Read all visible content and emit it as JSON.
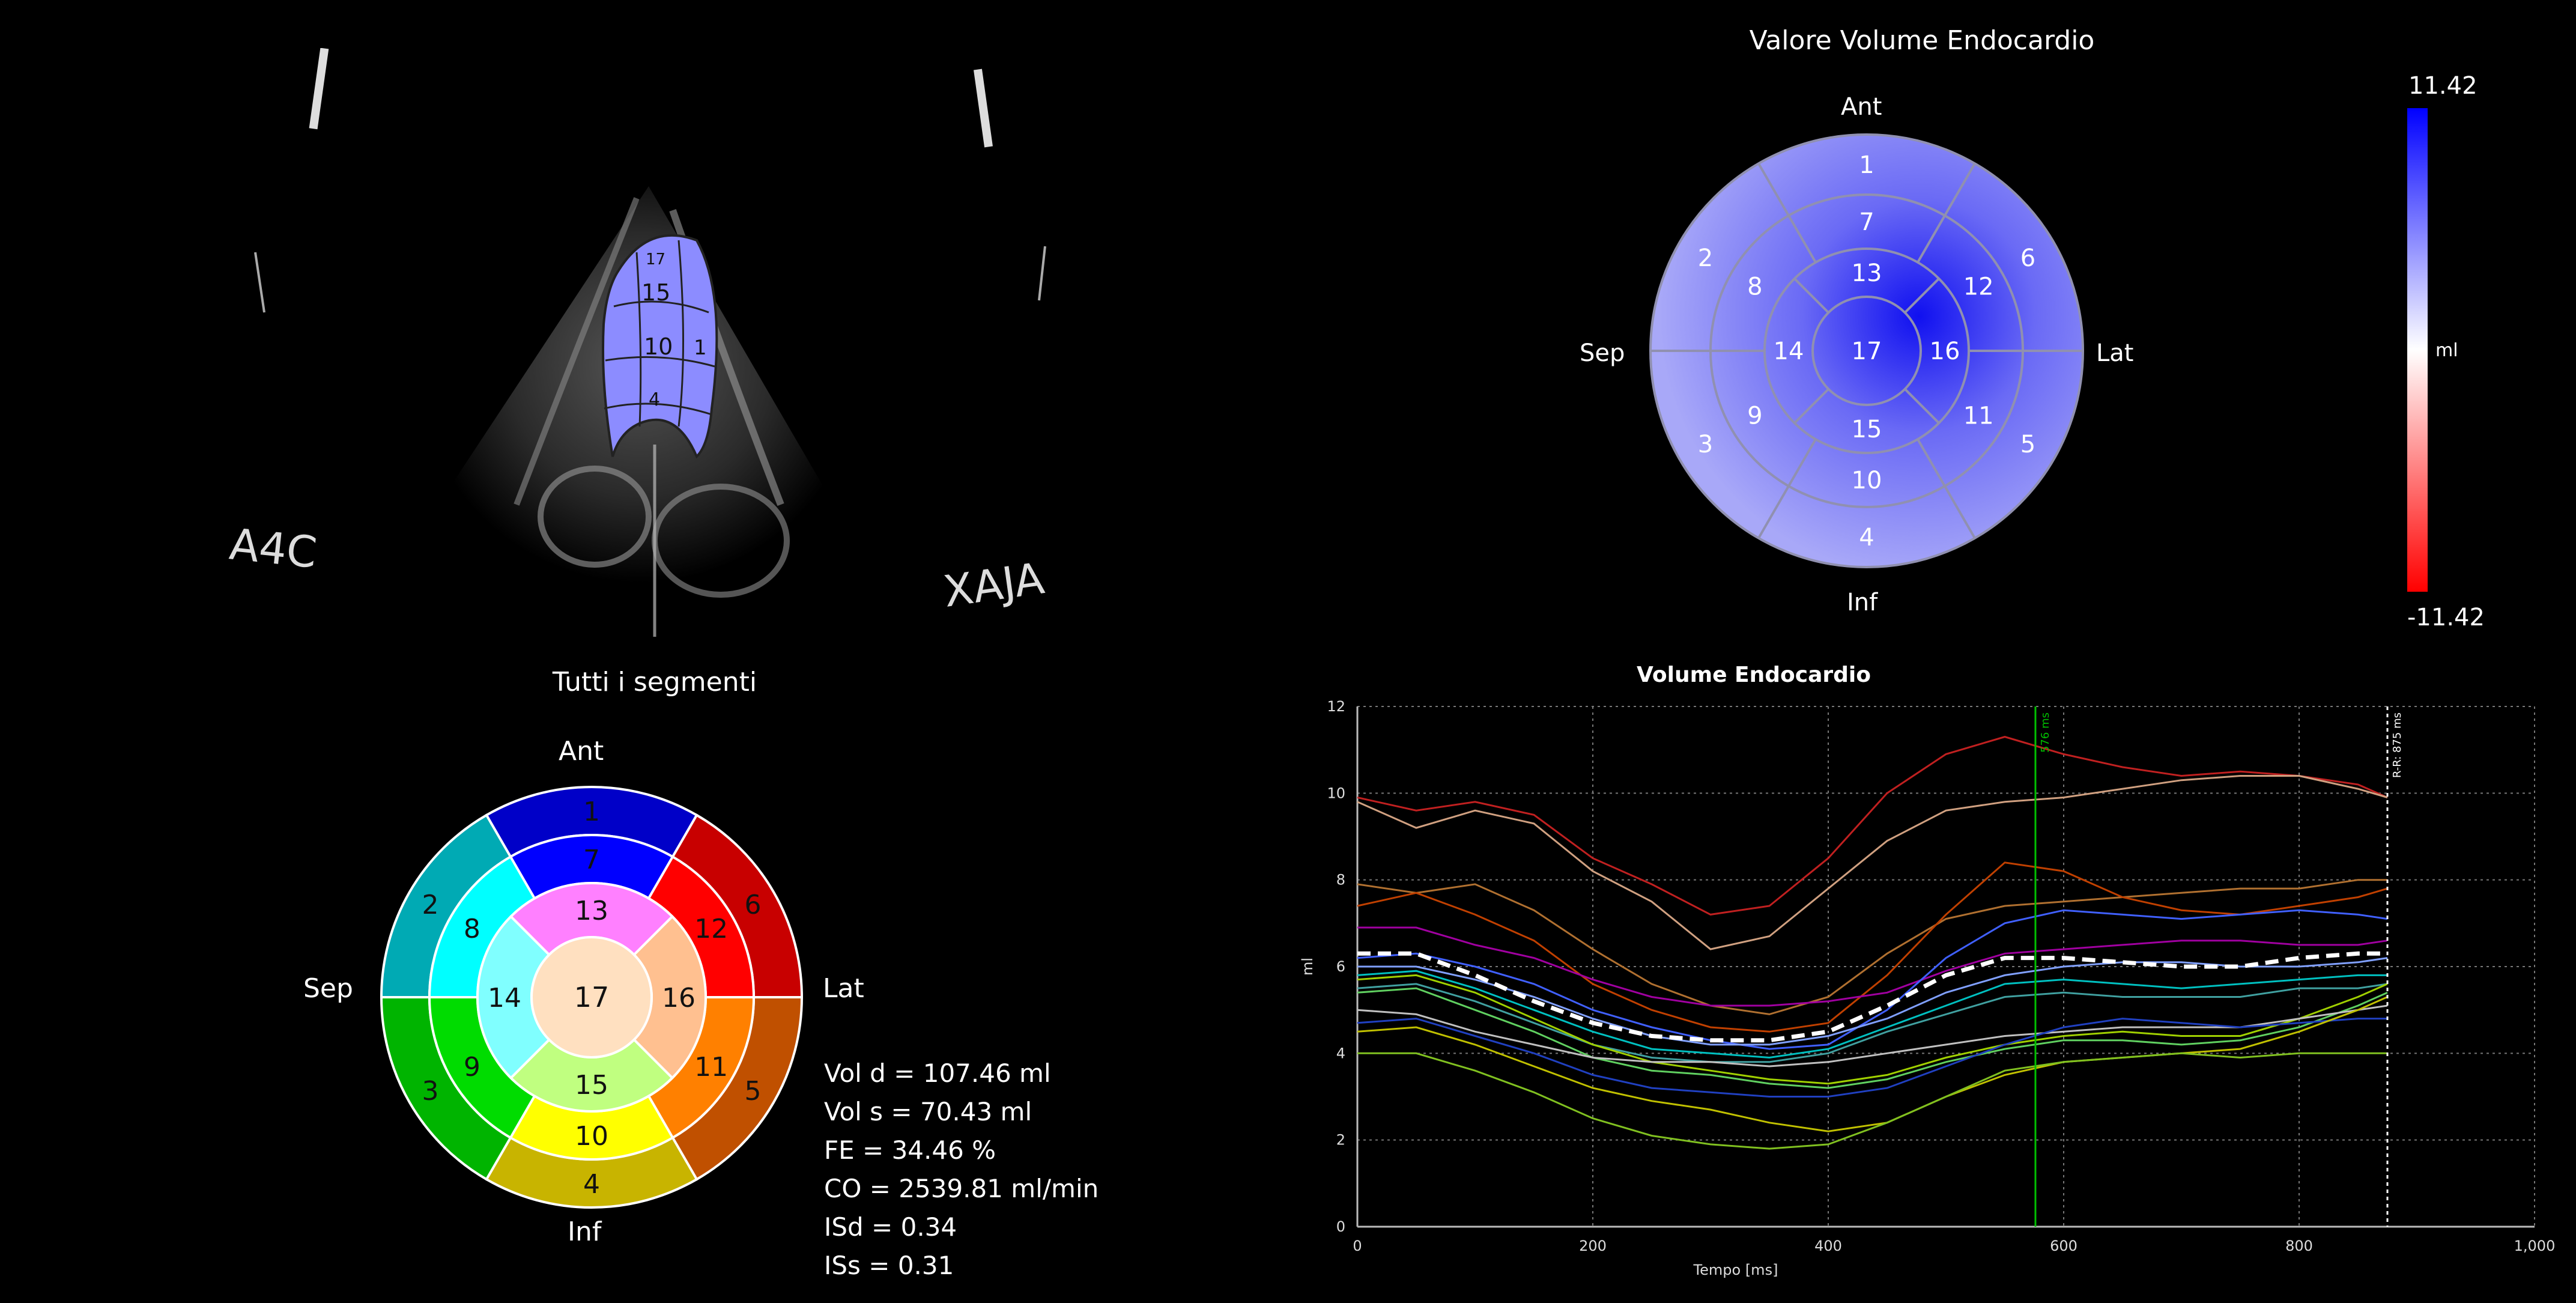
{
  "echo": {
    "view_label": "A4C",
    "logo_text": "XAJA",
    "overlay_segments": [
      "17",
      "15",
      "10",
      "1",
      "4"
    ]
  },
  "bullseye_all": {
    "title": "Tutti i segmenti",
    "orient": {
      "top": "Ant",
      "bottom": "Inf",
      "left": "Sep",
      "right": "Lat"
    },
    "outer": [
      {
        "n": "1",
        "color": "#0000c8"
      },
      {
        "n": "6",
        "color": "#c80000"
      },
      {
        "n": "5",
        "color": "#c05000"
      },
      {
        "n": "4",
        "color": "#c8b400"
      },
      {
        "n": "3",
        "color": "#00b400"
      },
      {
        "n": "2",
        "color": "#00aab4"
      }
    ],
    "middle": [
      {
        "n": "7",
        "color": "#0000ff"
      },
      {
        "n": "12",
        "color": "#ff0000"
      },
      {
        "n": "11",
        "color": "#ff8000"
      },
      {
        "n": "10",
        "color": "#ffff00"
      },
      {
        "n": "9",
        "color": "#00dc00"
      },
      {
        "n": "8",
        "color": "#00ffff"
      }
    ],
    "inner": [
      {
        "n": "13",
        "color": "#ff80ff"
      },
      {
        "n": "16",
        "color": "#ffc090"
      },
      {
        "n": "15",
        "color": "#c0ff80"
      },
      {
        "n": "14",
        "color": "#80ffff"
      }
    ],
    "apex": {
      "n": "17",
      "color": "#ffe0c0"
    }
  },
  "stats": [
    "Vol d = 107.46 ml",
    "Vol s = 70.43 ml",
    "FE = 34.46 %",
    "CO = 2539.81 ml/min",
    "ISd = 0.34",
    "ISs = 0.31"
  ],
  "bullseye_vol": {
    "title": "Valore Volume Endocardio",
    "orient": {
      "top": "Ant",
      "bottom": "Inf",
      "left": "Sep",
      "right": "Lat"
    },
    "outer": [
      "1",
      "6",
      "5",
      "4",
      "3",
      "2"
    ],
    "middle": [
      "7",
      "12",
      "11",
      "10",
      "9",
      "8"
    ],
    "inner": [
      "13",
      "16",
      "15",
      "14"
    ],
    "apex": "17",
    "colorbar": {
      "max": "11.42",
      "min": "-11.42",
      "unit": "ml",
      "color_max": "#0000ff",
      "color_mid": "#ffffff",
      "color_min": "#ff0000"
    }
  },
  "chart_data": {
    "type": "line",
    "title": "Volume Endocardio",
    "xlabel": "Tempo [ms]",
    "ylabel": "ml",
    "xlim": [
      0,
      1000
    ],
    "ylim": [
      0,
      12
    ],
    "xticks": [
      "0",
      "200",
      "400",
      "600",
      "800",
      "1,000"
    ],
    "yticks": [
      "0",
      "2",
      "4",
      "6",
      "8",
      "10",
      "12"
    ],
    "markers": [
      {
        "label": "576 ms",
        "x": 576,
        "color": "#00c000"
      },
      {
        "label": "R-R: 875 ms",
        "x": 875,
        "color": "#ffffff"
      }
    ],
    "x": [
      0,
      50,
      100,
      150,
      200,
      250,
      300,
      350,
      400,
      450,
      500,
      550,
      600,
      650,
      700,
      750,
      800,
      850,
      875
    ],
    "series": [
      {
        "color": "#c02020",
        "values": [
          9.9,
          9.6,
          9.8,
          9.5,
          8.5,
          7.9,
          7.2,
          7.4,
          8.5,
          10.0,
          10.9,
          11.3,
          10.9,
          10.6,
          10.4,
          10.5,
          10.4,
          10.2,
          9.9
        ]
      },
      {
        "color": "#d0a080",
        "values": [
          9.8,
          9.2,
          9.6,
          9.3,
          8.2,
          7.5,
          6.4,
          6.7,
          7.8,
          8.9,
          9.6,
          9.8,
          9.9,
          10.1,
          10.3,
          10.4,
          10.4,
          10.1,
          9.9
        ]
      },
      {
        "color": "#b07030",
        "values": [
          7.9,
          7.7,
          7.9,
          7.3,
          6.4,
          5.6,
          5.1,
          4.9,
          5.3,
          6.3,
          7.1,
          7.4,
          7.5,
          7.6,
          7.7,
          7.8,
          7.8,
          8.0,
          8.0
        ]
      },
      {
        "color": "#c04000",
        "values": [
          7.4,
          7.7,
          7.2,
          6.6,
          5.6,
          5.0,
          4.6,
          4.5,
          4.7,
          5.8,
          7.2,
          8.4,
          8.2,
          7.6,
          7.3,
          7.2,
          7.4,
          7.6,
          7.8
        ]
      },
      {
        "color": "#a000a0",
        "values": [
          6.9,
          6.9,
          6.5,
          6.2,
          5.7,
          5.3,
          5.1,
          5.1,
          5.2,
          5.4,
          5.9,
          6.3,
          6.4,
          6.5,
          6.6,
          6.6,
          6.5,
          6.5,
          6.6
        ]
      },
      {
        "color": "#4060ff",
        "values": [
          6.2,
          6.3,
          6.0,
          5.6,
          5.0,
          4.6,
          4.3,
          4.1,
          4.2,
          5.0,
          6.2,
          7.0,
          7.3,
          7.2,
          7.1,
          7.2,
          7.3,
          7.2,
          7.1
        ]
      },
      {
        "color": "#80a0ff",
        "values": [
          6.0,
          6.0,
          5.7,
          5.3,
          4.8,
          4.4,
          4.2,
          4.2,
          4.4,
          4.8,
          5.4,
          5.8,
          6.0,
          6.1,
          6.1,
          6.0,
          6.0,
          6.1,
          6.2
        ]
      },
      {
        "color": "#ffffff",
        "dashed": true,
        "values": [
          6.3,
          6.3,
          5.8,
          5.2,
          4.7,
          4.4,
          4.3,
          4.3,
          4.5,
          5.1,
          5.8,
          6.2,
          6.2,
          6.1,
          6.0,
          6.0,
          6.2,
          6.3,
          6.3
        ]
      },
      {
        "color": "#00c0c0",
        "values": [
          5.8,
          5.9,
          5.5,
          5.0,
          4.5,
          4.1,
          4.0,
          3.9,
          4.1,
          4.6,
          5.1,
          5.6,
          5.7,
          5.6,
          5.5,
          5.6,
          5.7,
          5.8,
          5.8
        ]
      },
      {
        "color": "#40a0a0",
        "values": [
          5.5,
          5.6,
          5.2,
          4.7,
          4.2,
          3.9,
          3.8,
          3.8,
          4.0,
          4.5,
          4.9,
          5.3,
          5.4,
          5.3,
          5.3,
          5.3,
          5.5,
          5.5,
          5.6
        ]
      },
      {
        "color": "#a0d000",
        "values": [
          5.7,
          5.8,
          5.4,
          4.8,
          4.2,
          3.8,
          3.6,
          3.4,
          3.3,
          3.5,
          3.9,
          4.2,
          4.4,
          4.5,
          4.4,
          4.4,
          4.8,
          5.3,
          5.6
        ]
      },
      {
        "color": "#60d060",
        "values": [
          5.4,
          5.5,
          5.0,
          4.5,
          3.9,
          3.6,
          3.5,
          3.3,
          3.2,
          3.4,
          3.8,
          4.1,
          4.3,
          4.3,
          4.2,
          4.3,
          4.6,
          5.1,
          5.4
        ]
      },
      {
        "color": "#c0c0c0",
        "values": [
          5.0,
          4.9,
          4.5,
          4.2,
          3.9,
          3.8,
          3.8,
          3.7,
          3.8,
          4.0,
          4.2,
          4.4,
          4.5,
          4.6,
          4.6,
          4.6,
          4.8,
          5.0,
          5.1
        ]
      },
      {
        "color": "#2040c0",
        "values": [
          4.7,
          4.8,
          4.4,
          4.0,
          3.5,
          3.2,
          3.1,
          3.0,
          3.0,
          3.2,
          3.7,
          4.2,
          4.6,
          4.8,
          4.7,
          4.6,
          4.7,
          4.8,
          4.8
        ]
      },
      {
        "color": "#c0c000",
        "values": [
          4.5,
          4.6,
          4.2,
          3.7,
          3.2,
          2.9,
          2.7,
          2.4,
          2.2,
          2.4,
          3.0,
          3.5,
          3.8,
          3.9,
          4.0,
          4.1,
          4.5,
          5.0,
          5.3
        ]
      },
      {
        "color": "#80c020",
        "values": [
          4.0,
          4.0,
          3.6,
          3.1,
          2.5,
          2.1,
          1.9,
          1.8,
          1.9,
          2.4,
          3.0,
          3.6,
          3.8,
          3.9,
          4.0,
          3.9,
          4.0,
          4.0,
          4.0
        ]
      }
    ]
  }
}
